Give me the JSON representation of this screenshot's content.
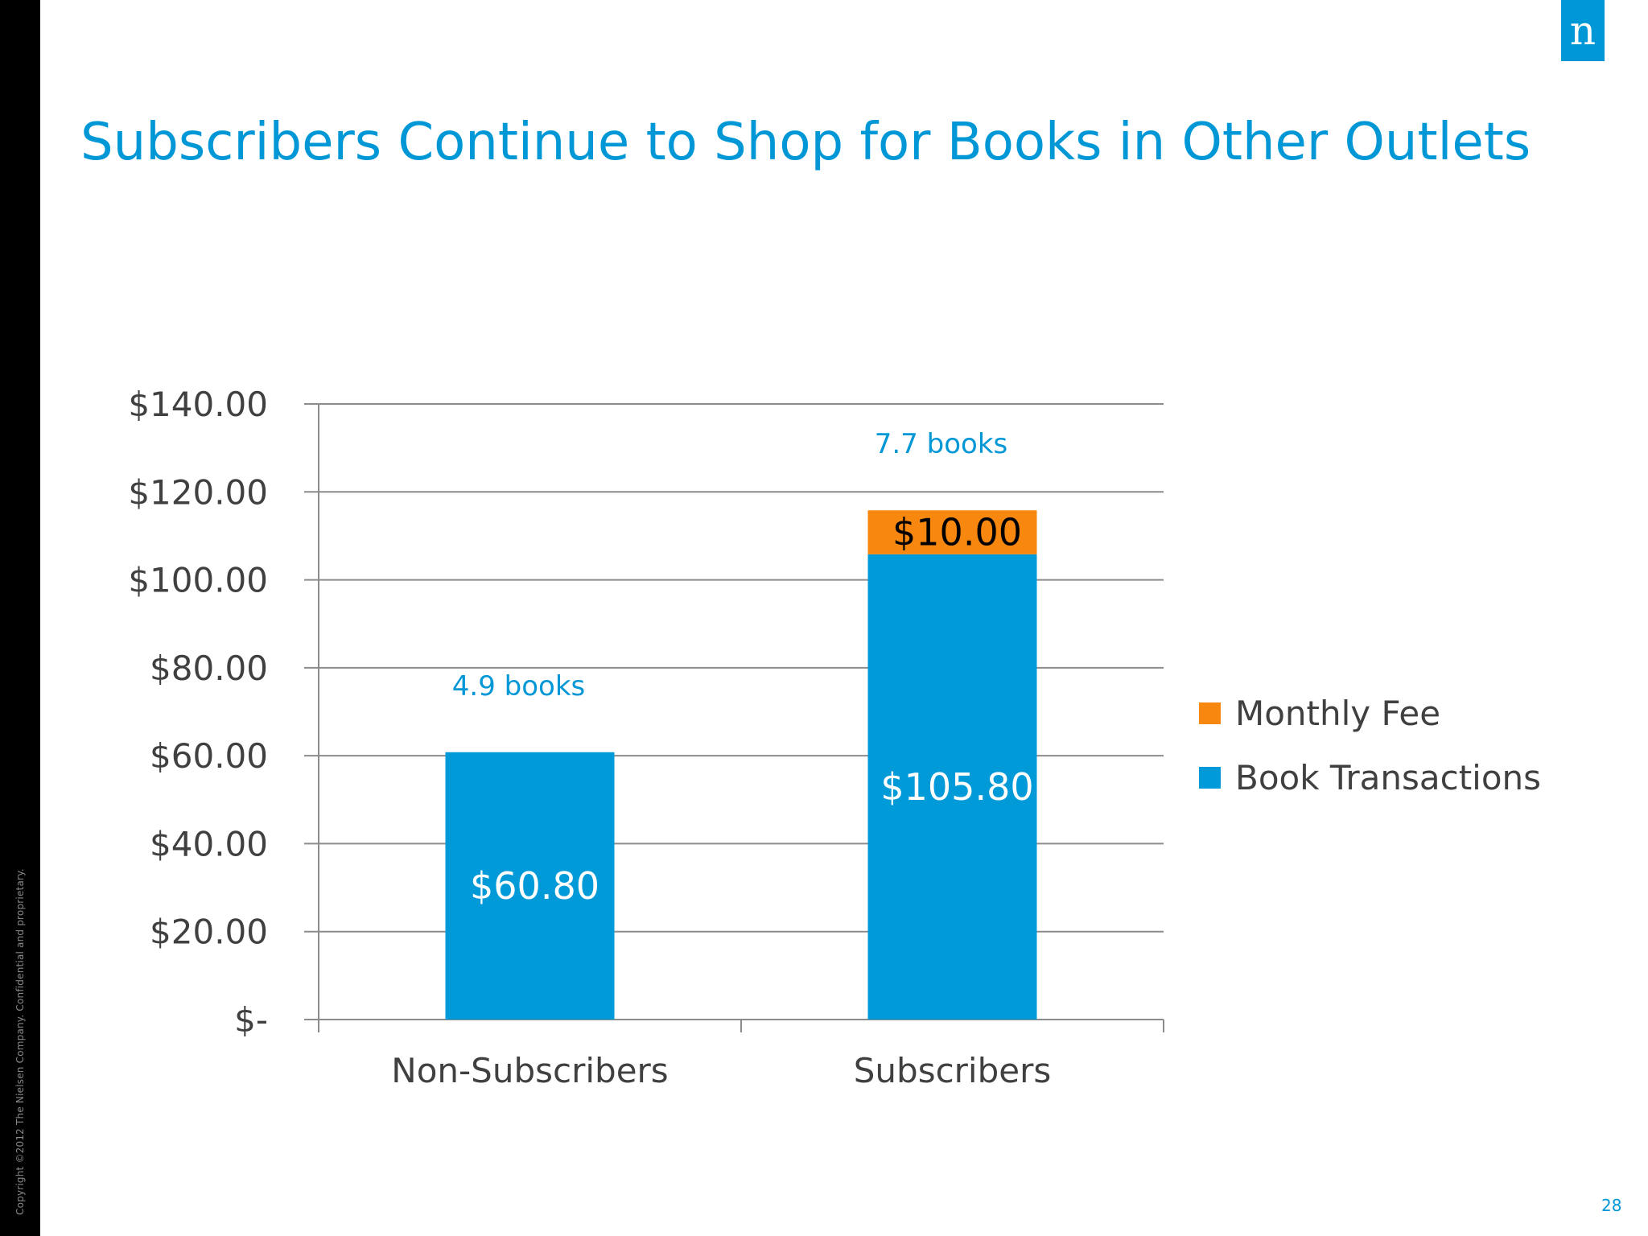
{
  "slide": {
    "title": "Subscribers Continue to Shop for Books in Other Outlets",
    "logo_text": "n",
    "copyright": "Copyright ©2012 The Nielsen Company. Confidential and proprietary.",
    "page_number": "28",
    "colors": {
      "accent": "#0097d6",
      "strip": "#000000",
      "axis_text": "#404040",
      "gridline": "#8c8c8c"
    }
  },
  "chart_data": {
    "type": "bar",
    "stacked": true,
    "categories": [
      "Non-Subscribers",
      "Subscribers"
    ],
    "series": [
      {
        "name": "Book Transactions",
        "color": "#009ad9",
        "values": [
          60.8,
          105.8
        ],
        "data_labels": [
          "$60.80",
          "$105.80"
        ],
        "label_color": "#ffffff"
      },
      {
        "name": "Monthly Fee",
        "color": "#f7870f",
        "values": [
          0,
          10.0
        ],
        "data_labels": [
          "",
          "$10.00"
        ],
        "label_color": "#000000"
      }
    ],
    "annotations": [
      "4.9 books",
      "7.7 books"
    ],
    "y_ticks": [
      0,
      20,
      40,
      60,
      80,
      100,
      120,
      140
    ],
    "y_tick_labels": [
      "$-",
      "$20.00",
      "$40.00",
      "$60.00",
      "$80.00",
      "$100.00",
      "$120.00",
      "$140.00"
    ],
    "ylim": [
      0,
      140
    ],
    "grid": true,
    "legend_position": "right",
    "legend_order": [
      "Monthly Fee",
      "Book Transactions"
    ]
  }
}
